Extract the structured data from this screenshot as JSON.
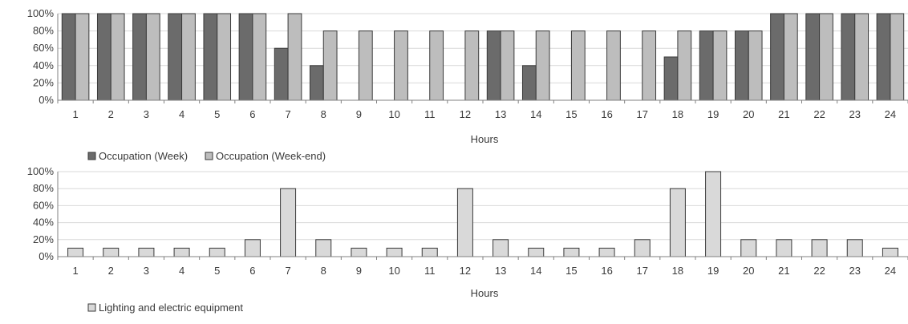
{
  "chart_data": [
    {
      "type": "bar",
      "categories": [
        "1",
        "2",
        "3",
        "4",
        "5",
        "6",
        "7",
        "8",
        "9",
        "10",
        "11",
        "12",
        "13",
        "14",
        "15",
        "16",
        "17",
        "18",
        "19",
        "20",
        "21",
        "22",
        "23",
        "24"
      ],
      "series": [
        {
          "name": "Occupation (Week)",
          "values": [
            100,
            100,
            100,
            100,
            100,
            100,
            60,
            40,
            0,
            0,
            0,
            0,
            80,
            40,
            0,
            0,
            0,
            50,
            80,
            80,
            100,
            100,
            100,
            100
          ],
          "color": "#6b6b6b"
        },
        {
          "name": "Occupation (Week-end)",
          "values": [
            100,
            100,
            100,
            100,
            100,
            100,
            100,
            80,
            80,
            80,
            80,
            80,
            80,
            80,
            80,
            80,
            80,
            80,
            80,
            80,
            100,
            100,
            100,
            100
          ],
          "color": "#bdbdbd"
        }
      ],
      "xlabel": "Hours",
      "ylabel": "",
      "ylim": [
        0,
        100
      ],
      "yticks": [
        "0%",
        "20%",
        "40%",
        "60%",
        "80%",
        "100%"
      ],
      "grid": true,
      "legend": "bottom-left"
    },
    {
      "type": "bar",
      "categories": [
        "1",
        "2",
        "3",
        "4",
        "5",
        "6",
        "7",
        "8",
        "9",
        "10",
        "11",
        "12",
        "13",
        "14",
        "15",
        "16",
        "17",
        "18",
        "19",
        "20",
        "21",
        "22",
        "23",
        "24"
      ],
      "series": [
        {
          "name": "Lighting and electric equipment",
          "values": [
            10,
            10,
            10,
            10,
            10,
            20,
            80,
            20,
            10,
            10,
            10,
            80,
            20,
            10,
            10,
            10,
            20,
            80,
            100,
            20,
            20,
            20,
            20,
            10
          ],
          "color": "#d9d9d9"
        }
      ],
      "xlabel": "Hours",
      "ylabel": "",
      "ylim": [
        0,
        100
      ],
      "yticks": [
        "0%",
        "20%",
        "40%",
        "60%",
        "80%",
        "100%"
      ],
      "grid": true,
      "legend": "bottom-left"
    }
  ]
}
